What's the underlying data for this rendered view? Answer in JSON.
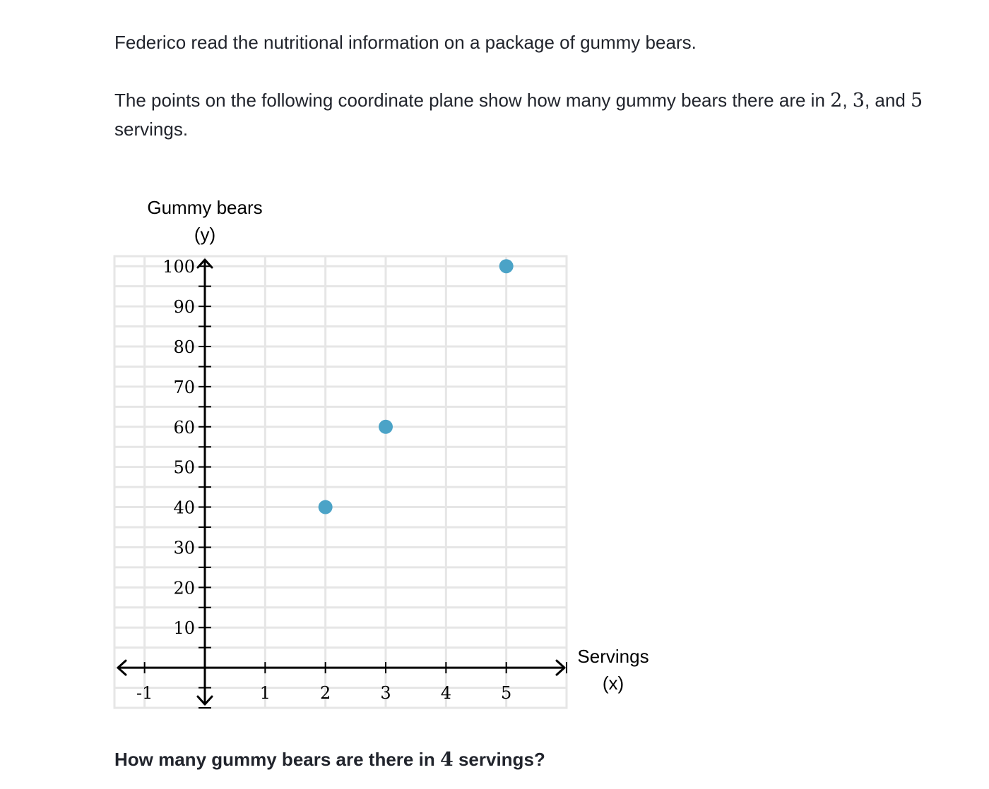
{
  "intro": {
    "sentence1": "Federico read the nutritional information on a package of gummy bears.",
    "sentence2_parts": [
      "The points on the following coordinate plane show how many gummy bears there are in ",
      "2",
      ", ",
      "3",
      ", and ",
      "5",
      " servings."
    ]
  },
  "question": {
    "parts": [
      "How many gummy bears are there in ",
      "4",
      " servings?"
    ]
  },
  "chart_data": {
    "type": "scatter",
    "xlabel_line1": "Servings",
    "xlabel_line2": "(x)",
    "ylabel_line1": "Gummy bears",
    "ylabel_line2": "(y)",
    "xlim": [
      -1.5,
      6
    ],
    "ylim": [
      -10,
      102.5
    ],
    "x_ticks": [
      -1,
      1,
      2,
      3,
      4,
      5
    ],
    "x_tick_labels": [
      "-1",
      "1",
      "2",
      "3",
      "4",
      "5"
    ],
    "y_ticks": [
      10,
      20,
      30,
      40,
      50,
      60,
      70,
      80,
      90,
      100
    ],
    "y_tick_labels": [
      "10",
      "20",
      "30",
      "40",
      "50",
      "60",
      "70",
      "80",
      "90",
      "100"
    ],
    "y_minor_step": 5,
    "grid": true,
    "points": [
      {
        "x": 2,
        "y": 40
      },
      {
        "x": 3,
        "y": 60
      },
      {
        "x": 5,
        "y": 100
      }
    ],
    "colors": {
      "point": "#4ba3c7",
      "grid": "#e6e6e6",
      "axis": "#000000"
    }
  }
}
